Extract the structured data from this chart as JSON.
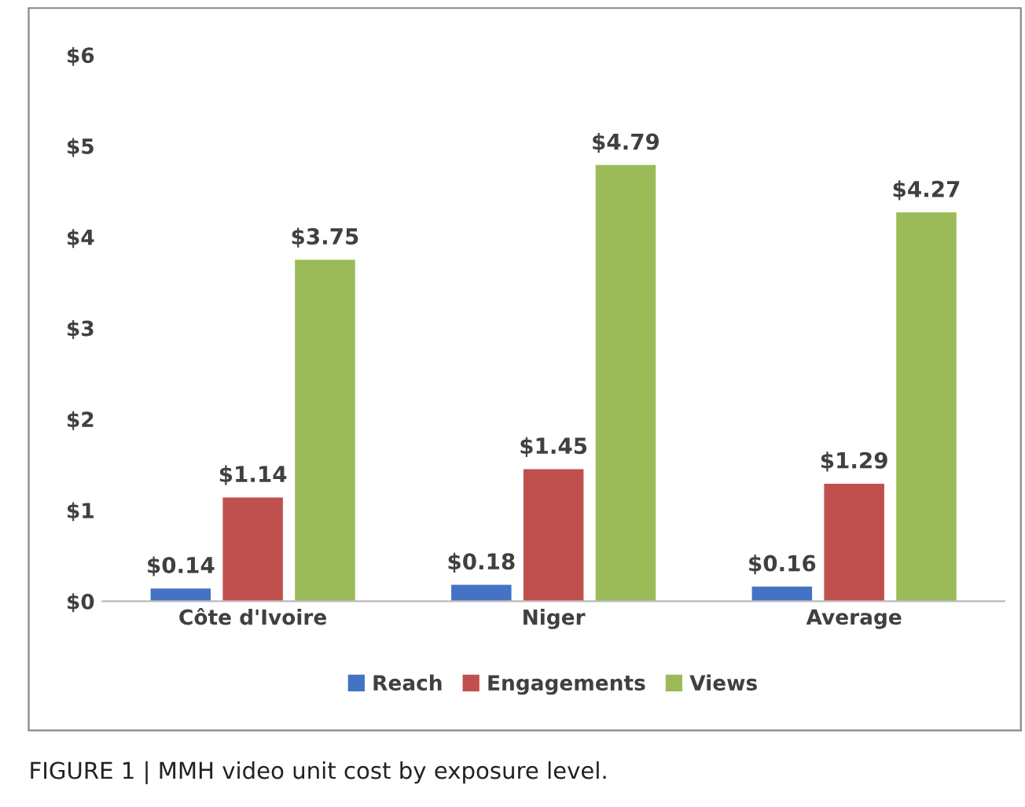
{
  "chart_data": {
    "type": "bar",
    "categories": [
      "Côte d'Ivoire",
      "Niger",
      "Average"
    ],
    "series": [
      {
        "name": "Reach",
        "color": "#4472c4",
        "values": [
          0.14,
          0.18,
          0.16
        ],
        "value_labels": [
          "$0.14",
          "$0.18",
          "$0.16"
        ]
      },
      {
        "name": "Engagements",
        "color": "#c0504d",
        "values": [
          1.14,
          1.45,
          1.29
        ],
        "value_labels": [
          "$1.14",
          "$1.45",
          "$1.29"
        ]
      },
      {
        "name": "Views",
        "color": "#9bbb59",
        "values": [
          3.75,
          4.79,
          4.27
        ],
        "value_labels": [
          "$3.75",
          "$4.79",
          "$4.27"
        ]
      }
    ],
    "ylim": [
      0,
      6
    ],
    "yticks": [
      {
        "value": 0,
        "label": "$0"
      },
      {
        "value": 1,
        "label": "$1"
      },
      {
        "value": 2,
        "label": "$2"
      },
      {
        "value": 3,
        "label": "$3"
      },
      {
        "value": 4,
        "label": "$4"
      },
      {
        "value": 5,
        "label": "$5"
      },
      {
        "value": 6,
        "label": "$6"
      }
    ],
    "grid": false,
    "legend": "bottom",
    "annotations": [
      "FIGURE 1 | MMH video unit cost by exposure level."
    ]
  }
}
